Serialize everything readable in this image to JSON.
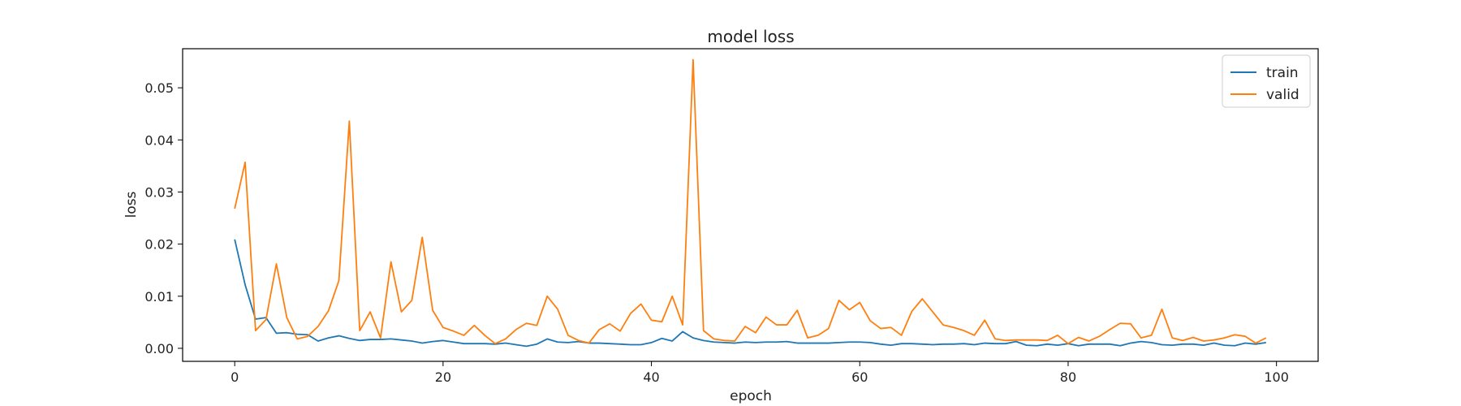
{
  "chart_data": {
    "type": "line",
    "title": "model loss",
    "xlabel": "epoch",
    "ylabel": "loss",
    "xlim": [
      -5,
      104
    ],
    "ylim": [
      -0.0025,
      0.0575
    ],
    "xticks": [
      0,
      20,
      40,
      60,
      80,
      100
    ],
    "yticks": [
      0.0,
      0.01,
      0.02,
      0.03,
      0.04,
      0.05
    ],
    "ytick_labels": [
      "0.00",
      "0.01",
      "0.02",
      "0.03",
      "0.04",
      "0.05"
    ],
    "grid": false,
    "legend": {
      "position": "top-right"
    },
    "series": [
      {
        "name": "train",
        "color": "#1f77b4",
        "values": [
          0.0209,
          0.0122,
          0.0056,
          0.0059,
          0.0029,
          0.003,
          0.0027,
          0.0026,
          0.0014,
          0.002,
          0.0024,
          0.0019,
          0.0015,
          0.0017,
          0.0017,
          0.0018,
          0.0016,
          0.0014,
          0.001,
          0.0013,
          0.0015,
          0.0012,
          0.0009,
          0.0009,
          0.0009,
          0.0008,
          0.001,
          0.0007,
          0.0004,
          0.0008,
          0.0018,
          0.0012,
          0.0011,
          0.0013,
          0.001,
          0.001,
          0.0009,
          0.0008,
          0.0007,
          0.0007,
          0.0011,
          0.0019,
          0.0014,
          0.0032,
          0.002,
          0.0015,
          0.0012,
          0.0011,
          0.001,
          0.0012,
          0.0011,
          0.0012,
          0.0012,
          0.0013,
          0.001,
          0.001,
          0.001,
          0.001,
          0.0011,
          0.0012,
          0.0012,
          0.0011,
          0.0008,
          0.0006,
          0.0009,
          0.0009,
          0.0008,
          0.0007,
          0.0008,
          0.0008,
          0.0009,
          0.0007,
          0.001,
          0.0009,
          0.0009,
          0.0013,
          0.0006,
          0.0005,
          0.0008,
          0.0006,
          0.0009,
          0.0005,
          0.0008,
          0.0008,
          0.0008,
          0.0005,
          0.001,
          0.0013,
          0.0011,
          0.0007,
          0.0006,
          0.0008,
          0.0008,
          0.0006,
          0.001,
          0.0006,
          0.0005,
          0.001,
          0.0008,
          0.0011
        ]
      },
      {
        "name": "valid",
        "color": "#ff7f0e",
        "values": [
          0.0268,
          0.0357,
          0.0034,
          0.0055,
          0.0162,
          0.0059,
          0.0018,
          0.0023,
          0.0042,
          0.0072,
          0.013,
          0.0436,
          0.0034,
          0.007,
          0.002,
          0.0166,
          0.007,
          0.0092,
          0.0213,
          0.0073,
          0.004,
          0.0033,
          0.0025,
          0.0044,
          0.0025,
          0.0009,
          0.0018,
          0.0036,
          0.0048,
          0.0044,
          0.01,
          0.0075,
          0.0025,
          0.0015,
          0.001,
          0.0036,
          0.0047,
          0.0033,
          0.0067,
          0.0085,
          0.0054,
          0.0051,
          0.01,
          0.0045,
          0.0554,
          0.0034,
          0.0018,
          0.0015,
          0.0014,
          0.0042,
          0.003,
          0.006,
          0.0045,
          0.0045,
          0.0073,
          0.002,
          0.0025,
          0.0038,
          0.0092,
          0.0074,
          0.0088,
          0.0053,
          0.0038,
          0.004,
          0.0025,
          0.0071,
          0.0095,
          0.007,
          0.0045,
          0.004,
          0.0034,
          0.0025,
          0.0054,
          0.0018,
          0.0015,
          0.0016,
          0.0016,
          0.0016,
          0.0015,
          0.0025,
          0.0009,
          0.0021,
          0.0014,
          0.0023,
          0.0036,
          0.0048,
          0.0047,
          0.002,
          0.0025,
          0.0075,
          0.002,
          0.0015,
          0.0021,
          0.0014,
          0.0016,
          0.002,
          0.0026,
          0.0023,
          0.001,
          0.002
        ]
      }
    ]
  }
}
